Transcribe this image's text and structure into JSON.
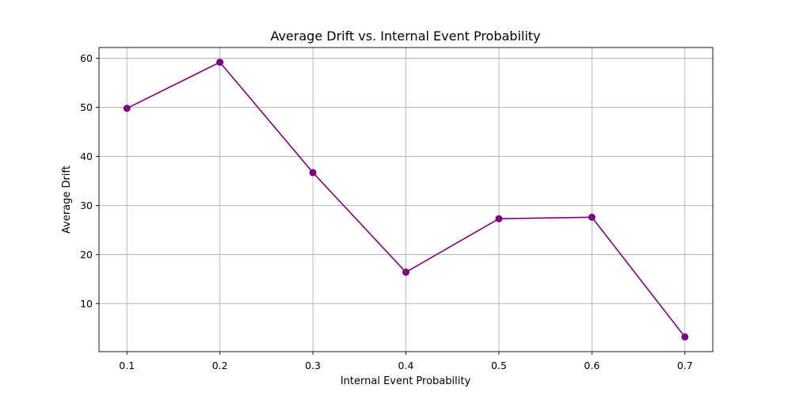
{
  "chart_data": {
    "type": "line",
    "title": "Average Drift vs. Internal Event Probability",
    "xlabel": "Internal Event Probability",
    "ylabel": "Average Drift",
    "x": [
      0.1,
      0.2,
      0.3,
      0.4,
      0.5,
      0.6,
      0.7
    ],
    "x_tick_labels": [
      "0.1",
      "0.2",
      "0.3",
      "0.4",
      "0.5",
      "0.6",
      "0.7"
    ],
    "xlim": [
      0.07,
      0.73
    ],
    "ylim": [
      0.2,
      62.2
    ],
    "y_ticks": [
      10,
      20,
      30,
      40,
      50,
      60
    ],
    "grid": true,
    "series": [
      {
        "values": [
          49.8,
          59.2,
          36.7,
          16.4,
          27.3,
          27.6,
          3.2
        ],
        "color": "#800080",
        "marker": "circle"
      }
    ]
  }
}
